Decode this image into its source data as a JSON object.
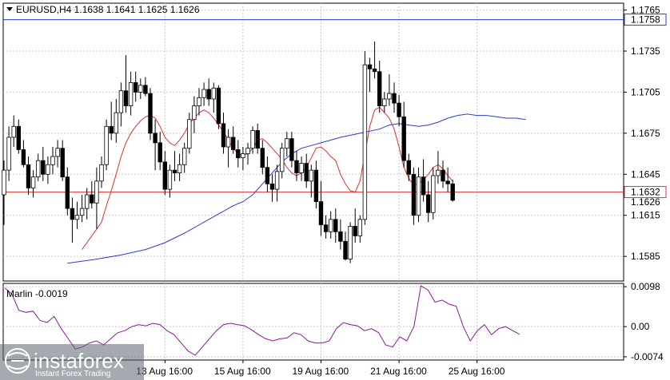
{
  "chart_data": [
    {
      "type": "candlestick",
      "symbol": "EURUSD",
      "timeframe": "H4",
      "header": "EURUSD,H4  1.1638 1.1641 1.1625 1.1626",
      "ohlc_header": {
        "open": 1.1638,
        "high": 1.1641,
        "low": 1.1625,
        "close": 1.1626
      },
      "ylim": [
        1.1567,
        1.177
      ],
      "y_ticks": [
        "1.1765",
        "1.1735",
        "1.1705",
        "1.1675",
        "1.1645",
        "1.1615",
        "1.1585"
      ],
      "y_tick_values": [
        1.1765,
        1.1735,
        1.1705,
        1.1675,
        1.1645,
        1.1615,
        1.1585
      ],
      "x_ticks": [
        "13 Aug 16:00",
        "15 Aug 16:00",
        "19 Aug 16:00",
        "21 Aug 16:00",
        "25 Aug 16:00"
      ],
      "x_tick_bar_index": [
        33,
        49,
        65,
        81,
        97
      ],
      "price_labels": [
        {
          "text": "1.1758",
          "value": 1.1758,
          "color": "#2b3bd6"
        },
        {
          "text": "1.1632",
          "value": 1.1632,
          "color": "#e03030"
        },
        {
          "text": "1.1626",
          "value": 1.1626,
          "color": "#000000"
        }
      ],
      "horizontal_lines": [
        {
          "value": 1.1758,
          "color": "#2b3bd6"
        },
        {
          "value": 1.1632,
          "color": "#e03030"
        }
      ],
      "candles": [
        [
          1.163,
          1.1655,
          1.1608,
          1.1648
        ],
        [
          1.1648,
          1.168,
          1.164,
          1.1672
        ],
        [
          1.1672,
          1.1688,
          1.1665,
          1.168
        ],
        [
          1.168,
          1.1685,
          1.166,
          1.1663
        ],
        [
          1.1663,
          1.167,
          1.165,
          1.1652
        ],
        [
          1.1652,
          1.1658,
          1.163,
          1.1635
        ],
        [
          1.1635,
          1.1648,
          1.1628,
          1.1643
        ],
        [
          1.1643,
          1.166,
          1.164,
          1.1655
        ],
        [
          1.1655,
          1.1665,
          1.164,
          1.1645
        ],
        [
          1.1645,
          1.1658,
          1.1638,
          1.1652
        ],
        [
          1.1652,
          1.1665,
          1.1645,
          1.1658
        ],
        [
          1.1658,
          1.167,
          1.165,
          1.1664
        ],
        [
          1.1664,
          1.167,
          1.164,
          1.1643
        ],
        [
          1.1643,
          1.165,
          1.1615,
          1.162
        ],
        [
          1.162,
          1.1628,
          1.1595,
          1.1612
        ],
        [
          1.1612,
          1.1625,
          1.1605,
          1.1615
        ],
        [
          1.1615,
          1.163,
          1.161,
          1.162
        ],
        [
          1.162,
          1.1635,
          1.1612,
          1.163
        ],
        [
          1.163,
          1.164,
          1.162,
          1.1624
        ],
        [
          1.1624,
          1.165,
          1.1605,
          1.164
        ],
        [
          1.164,
          1.1658,
          1.1635,
          1.1652
        ],
        [
          1.1652,
          1.1685,
          1.1648,
          1.168
        ],
        [
          1.168,
          1.1698,
          1.167,
          1.1675
        ],
        [
          1.1675,
          1.17,
          1.1668,
          1.169
        ],
        [
          1.169,
          1.1712,
          1.168,
          1.1706
        ],
        [
          1.1706,
          1.1732,
          1.169,
          1.1695
        ],
        [
          1.1695,
          1.172,
          1.1688,
          1.1712
        ],
        [
          1.1712,
          1.172,
          1.1698,
          1.1705
        ],
        [
          1.1705,
          1.1715,
          1.17,
          1.171
        ],
        [
          1.171,
          1.1716,
          1.1702,
          1.1704
        ],
        [
          1.1704,
          1.1708,
          1.167,
          1.1675
        ],
        [
          1.1675,
          1.1685,
          1.1648,
          1.1668
        ],
        [
          1.1668,
          1.1676,
          1.1648,
          1.1654
        ],
        [
          1.1654,
          1.1662,
          1.163,
          1.1634
        ],
        [
          1.1634,
          1.1652,
          1.1628,
          1.1648
        ],
        [
          1.1648,
          1.1662,
          1.164,
          1.1646
        ],
        [
          1.1646,
          1.166,
          1.164,
          1.1652
        ],
        [
          1.1652,
          1.1668,
          1.1646,
          1.1664
        ],
        [
          1.1664,
          1.169,
          1.166,
          1.1685
        ],
        [
          1.1685,
          1.1702,
          1.1675,
          1.1695
        ],
        [
          1.1695,
          1.1708,
          1.1688,
          1.1701
        ],
        [
          1.1701,
          1.1712,
          1.1695,
          1.1707
        ],
        [
          1.1707,
          1.1715,
          1.1695,
          1.17
        ],
        [
          1.17,
          1.1712,
          1.169,
          1.1708
        ],
        [
          1.1708,
          1.171,
          1.1678,
          1.1682
        ],
        [
          1.1682,
          1.169,
          1.166,
          1.1665
        ],
        [
          1.1665,
          1.1678,
          1.165,
          1.1672
        ],
        [
          1.1672,
          1.168,
          1.166,
          1.1663
        ],
        [
          1.1663,
          1.167,
          1.165,
          1.1657
        ],
        [
          1.1657,
          1.1665,
          1.1648,
          1.166
        ],
        [
          1.166,
          1.1668,
          1.1652,
          1.1664
        ],
        [
          1.1664,
          1.168,
          1.166,
          1.1677
        ],
        [
          1.1677,
          1.1682,
          1.166,
          1.1664
        ],
        [
          1.1664,
          1.167,
          1.1645,
          1.165
        ],
        [
          1.165,
          1.1658,
          1.1632,
          1.1638
        ],
        [
          1.1638,
          1.1645,
          1.1625,
          1.1634
        ],
        [
          1.1634,
          1.1652,
          1.1625,
          1.1647
        ],
        [
          1.1647,
          1.1668,
          1.1642,
          1.1664
        ],
        [
          1.1664,
          1.1676,
          1.1658,
          1.1671
        ],
        [
          1.1671,
          1.1676,
          1.165,
          1.1655
        ],
        [
          1.1655,
          1.1662,
          1.164,
          1.1646
        ],
        [
          1.1646,
          1.1658,
          1.164,
          1.1653
        ],
        [
          1.1653,
          1.166,
          1.1635,
          1.164
        ],
        [
          1.164,
          1.1652,
          1.1628,
          1.1648
        ],
        [
          1.1648,
          1.1655,
          1.162,
          1.1625
        ],
        [
          1.1625,
          1.164,
          1.16,
          1.1608
        ],
        [
          1.1608,
          1.1615,
          1.1598,
          1.1603
        ],
        [
          1.1603,
          1.1618,
          1.1598,
          1.1612
        ],
        [
          1.1612,
          1.162,
          1.1595,
          1.1603
        ],
        [
          1.1603,
          1.1612,
          1.159,
          1.1596
        ],
        [
          1.1596,
          1.1603,
          1.1582,
          1.1583
        ],
        [
          1.1583,
          1.161,
          1.158,
          1.1607
        ],
        [
          1.1607,
          1.162,
          1.1595,
          1.16
        ],
        [
          1.16,
          1.1615,
          1.1595,
          1.1612
        ],
        [
          1.1612,
          1.1735,
          1.1608,
          1.1725
        ],
        [
          1.1725,
          1.173,
          1.1705,
          1.1722
        ],
        [
          1.1722,
          1.1742,
          1.1715,
          1.172
        ],
        [
          1.172,
          1.1728,
          1.169,
          1.1695
        ],
        [
          1.1695,
          1.1705,
          1.169,
          1.17
        ],
        [
          1.17,
          1.1718,
          1.1695,
          1.1704
        ],
        [
          1.1704,
          1.1712,
          1.169,
          1.1697
        ],
        [
          1.1697,
          1.1703,
          1.168,
          1.1687
        ],
        [
          1.1687,
          1.1698,
          1.165,
          1.1655
        ],
        [
          1.1655,
          1.166,
          1.164,
          1.1645
        ],
        [
          1.1645,
          1.165,
          1.1608,
          1.1615
        ],
        [
          1.1615,
          1.165,
          1.161,
          1.1643
        ],
        [
          1.1643,
          1.1656,
          1.1625,
          1.163
        ],
        [
          1.163,
          1.164,
          1.161,
          1.1617
        ],
        [
          1.1617,
          1.165,
          1.1612,
          1.1644
        ],
        [
          1.1644,
          1.1662,
          1.1638,
          1.1648
        ],
        [
          1.1648,
          1.1655,
          1.1635,
          1.164
        ],
        [
          1.164,
          1.165,
          1.1632,
          1.1638
        ],
        [
          1.1638,
          1.1641,
          1.1625,
          1.1626
        ]
      ],
      "series": [
        {
          "color": "#e03030",
          "values": [
            1.159,
            1.1595,
            1.16,
            1.1605,
            1.161,
            1.1622,
            1.1633,
            1.1645,
            1.1658,
            1.1668,
            1.1675,
            1.168,
            1.1684,
            1.1687,
            1.1688,
            1.1686,
            1.168,
            1.1672,
            1.1668,
            1.1666,
            1.167,
            1.1675,
            1.1682,
            1.1686,
            1.169,
            1.1692,
            1.169,
            1.1686,
            1.1681,
            1.1676,
            1.167,
            1.1664,
            1.166,
            1.1659,
            1.166,
            1.1664,
            1.167,
            1.1671,
            1.1668,
            1.1664,
            1.166,
            1.1656,
            1.165,
            1.1646,
            1.1644,
            1.1646,
            1.165,
            1.1657,
            1.1664,
            1.1665,
            1.1662,
            1.1658,
            1.1655,
            1.1645,
            1.1638,
            1.1633,
            1.1632,
            1.164,
            1.166,
            1.168,
            1.1692,
            1.1694,
            1.169,
            1.1686,
            1.1678,
            1.1665,
            1.165,
            1.1642,
            1.1637,
            1.1638,
            1.1641,
            1.1645,
            1.165,
            1.1652,
            1.1649,
            1.1644,
            1.164
          ],
          "start_index": 16
        },
        {
          "color": "#2b3bd6",
          "values": [
            1.158,
            1.1583,
            1.1586,
            1.159,
            1.1595,
            1.1602,
            1.161,
            1.1618,
            1.1622,
            1.1625,
            1.163,
            1.1638,
            1.1646,
            1.1654,
            1.166,
            1.1664,
            1.1666,
            1.1668,
            1.1672,
            1.1675,
            1.1678,
            1.1681,
            1.1682,
            1.1681,
            1.168,
            1.1681,
            1.1683,
            1.1686,
            1.1688,
            1.1689,
            1.1688,
            1.1688,
            1.1687,
            1.1686,
            1.1686,
            1.1685
          ],
          "x_bar_index": [
            13,
            19,
            24,
            29,
            33,
            37,
            41,
            45,
            47,
            49,
            51,
            53,
            55,
            57,
            59,
            61,
            63,
            65,
            69,
            73,
            77,
            79,
            81,
            83,
            85,
            87,
            89,
            91,
            93,
            95,
            97,
            99,
            101,
            103,
            105,
            107
          ]
        }
      ]
    },
    {
      "type": "line",
      "indicator_label": "Marlin -0.0019",
      "ylim": [
        -0.0082,
        0.0106
      ],
      "y_ticks": [
        "0.0098",
        "0.00",
        "-0.0074"
      ],
      "y_tick_values": [
        0.0098,
        0.0,
        -0.0074
      ],
      "series": [
        {
          "color": "#8a1a9a",
          "values": [
            0.0095,
            0.008,
            0.004,
            0.0035,
            0.0038,
            0.0015,
            0.001,
            0.0025,
            -0.0005,
            -0.003,
            -0.0055,
            -0.005,
            -0.004,
            -0.0035,
            -0.0045,
            -0.003,
            -0.0015,
            -0.001,
            0.0,
            0.0005,
            0.0002,
            0.0008,
            0.0005,
            -0.001,
            -0.002,
            -0.004,
            -0.006,
            -0.007,
            -0.005,
            -0.003,
            -0.001,
            0.0005,
            0.0008,
            0.0005,
            0.0002,
            -0.0008,
            -0.002,
            -0.003,
            -0.0035,
            -0.003,
            -0.0028,
            -0.0015,
            -0.002,
            -0.0035,
            -0.004,
            -0.004,
            -0.0035,
            -0.0005,
            0.001,
            0.0005,
            0.0002,
            -0.001,
            -0.0005,
            -0.0015,
            -0.0045,
            -0.005,
            -0.0025,
            -0.0035,
            0.0,
            0.01,
            0.009,
            0.006,
            0.0065,
            0.0055,
            0.005,
            0.0,
            -0.0035,
            -0.001,
            0.0005,
            -0.002,
            -0.0005,
            0.0,
            -0.001,
            -0.0019
          ]
        }
      ]
    }
  ],
  "watermark": {
    "brand": "instaforex",
    "tagline": "Instant Forex Trading"
  }
}
